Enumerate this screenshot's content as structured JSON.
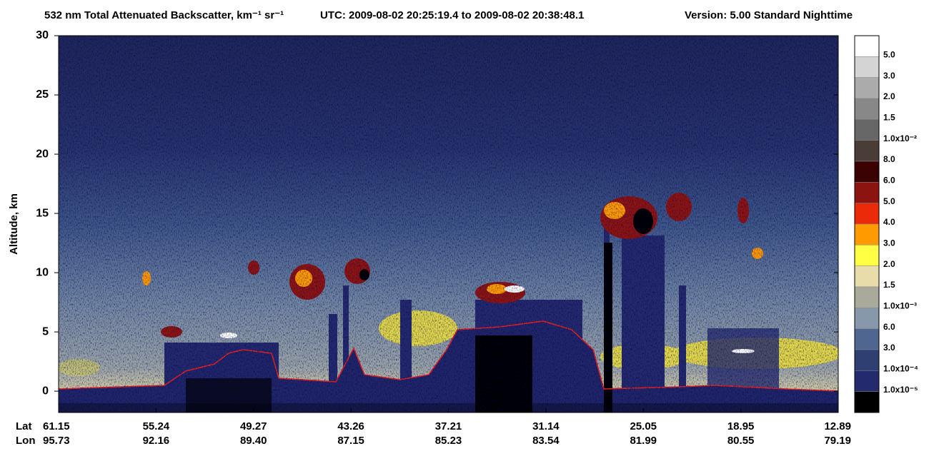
{
  "chart_data": {
    "type": "heatmap",
    "title": "532 nm Total Attenuated Backscatter, km⁻¹ sr⁻¹",
    "time_range": "UTC:  2009-08-02 20:25:19.4  to  2009-08-02 20:38:48.1",
    "version": "Version: 5.00  Standard  Nighttime",
    "ylabel": "Altitude, km",
    "ylim": [
      -1.8,
      30
    ],
    "yticks": [
      0,
      5,
      10,
      15,
      20,
      25,
      30
    ],
    "x_rows": [
      {
        "name": "Lat",
        "labels": [
          "61.15",
          "55.24",
          "49.27",
          "43.26",
          "37.21",
          "31.14",
          "25.05",
          "18.95",
          "12.89"
        ]
      },
      {
        "name": "Lon",
        "labels": [
          "95.73",
          "92.16",
          "89.40",
          "87.15",
          "85.23",
          "83.54",
          "81.99",
          "80.55",
          "79.19"
        ]
      }
    ],
    "colorbar": [
      {
        "color": "#ffffff",
        "label": "5.0"
      },
      {
        "color": "#d4d4d4",
        "label": "3.0"
      },
      {
        "color": "#ababab",
        "label": "2.0"
      },
      {
        "color": "#888888",
        "label": "1.5"
      },
      {
        "color": "#676767",
        "label": "1.0x10⁻²"
      },
      {
        "color": "#4a3c36",
        "label": "8.0"
      },
      {
        "color": "#3a0202",
        "label": "6.0"
      },
      {
        "color": "#8c1410",
        "label": "5.0"
      },
      {
        "color": "#ea2a08",
        "label": "4.0"
      },
      {
        "color": "#ff9a00",
        "label": "3.0"
      },
      {
        "color": "#ffff44",
        "label": "2.0"
      },
      {
        "color": "#e9dcab",
        "label": "1.5"
      },
      {
        "color": "#a9aa9a",
        "label": "1.0x10⁻³"
      },
      {
        "color": "#8698aa",
        "label": "6.0"
      },
      {
        "color": "#4f6691",
        "label": "3.0"
      },
      {
        "color": "#303f72",
        "label": "1.0x10⁻⁴"
      },
      {
        "color": "#242a6e",
        "label": "1.0x10⁻⁵"
      },
      {
        "color": "#000000",
        "label": null
      }
    ]
  }
}
